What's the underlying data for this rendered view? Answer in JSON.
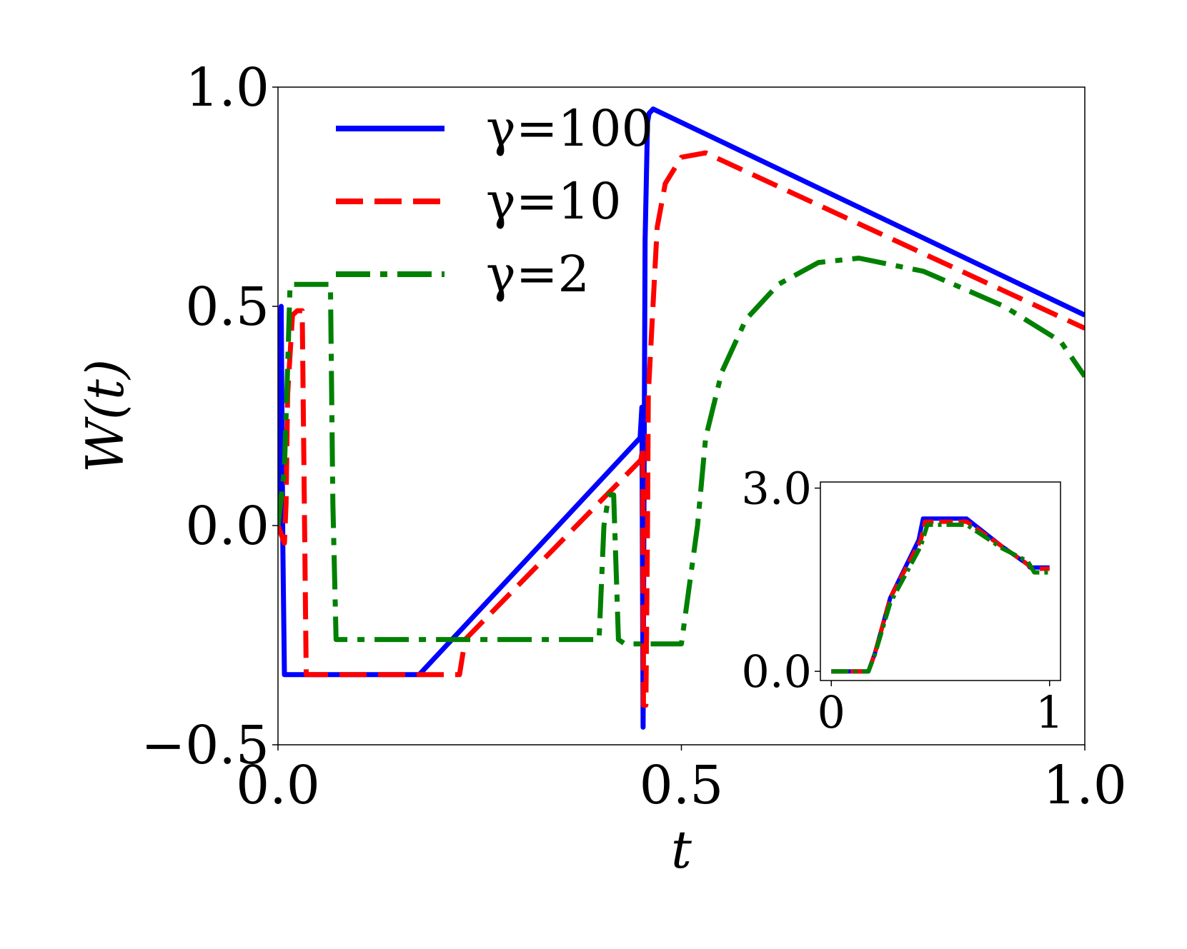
{
  "chart_data": [
    {
      "type": "line",
      "xlabel": "t",
      "ylabel": "W(t)",
      "xlim": [
        0.0,
        1.0
      ],
      "ylim": [
        -0.5,
        1.0
      ],
      "xticks": [
        "0.0",
        "0.5",
        "1.0"
      ],
      "yticks": [
        "−0.5",
        "0.0",
        "0.5",
        "1.0"
      ],
      "legend_position": "top-left",
      "grid": false,
      "series": [
        {
          "name": "γ=100",
          "color": "#0000ff",
          "style": "solid",
          "x": [
            0.0,
            0.002,
            0.004,
            0.006,
            0.008,
            0.175,
            0.4488,
            0.451,
            0.4525,
            0.4535,
            0.455,
            0.458,
            0.46,
            0.465,
            1.0
          ],
          "y": [
            0.0,
            0.45,
            0.5,
            -0.05,
            -0.34,
            -0.34,
            0.2,
            0.27,
            -0.46,
            0.0,
            0.65,
            0.92,
            0.94,
            0.95,
            0.48
          ]
        },
        {
          "name": "γ=10",
          "color": "#ff0000",
          "style": "dashed",
          "x": [
            0.0,
            0.004,
            0.008,
            0.01,
            0.012,
            0.018,
            0.024,
            0.03,
            0.035,
            0.225,
            0.232,
            0.45,
            0.452,
            0.453,
            0.456,
            0.458,
            0.459,
            0.47,
            0.48,
            0.5,
            0.53,
            1.0
          ],
          "y": [
            0.0,
            -0.02,
            -0.04,
            0.05,
            0.3,
            0.48,
            0.49,
            0.49,
            -0.34,
            -0.34,
            -0.26,
            0.15,
            0.18,
            -0.41,
            -0.41,
            0.0,
            0.3,
            0.68,
            0.78,
            0.84,
            0.85,
            0.45
          ]
        },
        {
          "name": "γ=2",
          "color": "#008000",
          "style": "dashdot",
          "x": [
            0.0,
            0.008,
            0.012,
            0.015,
            0.018,
            0.065,
            0.068,
            0.072,
            0.398,
            0.404,
            0.41,
            0.416,
            0.422,
            0.43,
            0.5,
            0.52,
            0.53,
            0.55,
            0.58,
            0.62,
            0.67,
            0.72,
            0.8,
            0.9,
            0.97,
            1.0
          ],
          "y": [
            0.0,
            0.13,
            0.36,
            0.55,
            0.55,
            0.55,
            0.05,
            -0.26,
            -0.26,
            0.0,
            0.07,
            0.07,
            -0.26,
            -0.27,
            -0.27,
            0.0,
            0.2,
            0.35,
            0.47,
            0.55,
            0.6,
            0.61,
            0.58,
            0.5,
            0.42,
            0.34
          ]
        }
      ]
    },
    {
      "type": "line",
      "inset": true,
      "xlim": [
        -0.05,
        1.05
      ],
      "ylim": [
        -0.15,
        3.1
      ],
      "xticks": [
        "0",
        "1"
      ],
      "yticks": [
        "0.0",
        "3.0"
      ],
      "series": [
        {
          "name": "γ=100",
          "color": "#0000ff",
          "style": "solid",
          "x": [
            0.0,
            0.17,
            0.2,
            0.27,
            0.4,
            0.42,
            0.62,
            0.78,
            0.9,
            0.91,
            1.0
          ],
          "y": [
            0.0,
            0.0,
            0.3,
            1.2,
            2.15,
            2.5,
            2.5,
            2.05,
            1.75,
            1.7,
            1.7
          ]
        },
        {
          "name": "γ=10",
          "color": "#ff0000",
          "style": "dashed",
          "x": [
            0.0,
            0.17,
            0.2,
            0.27,
            0.41,
            0.43,
            0.62,
            0.78,
            0.9,
            0.92,
            1.0
          ],
          "y": [
            0.0,
            0.0,
            0.3,
            1.2,
            2.15,
            2.45,
            2.45,
            2.05,
            1.75,
            1.68,
            1.68
          ]
        },
        {
          "name": "γ=2",
          "color": "#008000",
          "style": "dashdot",
          "x": [
            0.0,
            0.17,
            0.2,
            0.27,
            0.41,
            0.44,
            0.62,
            0.78,
            0.9,
            0.93,
            1.0
          ],
          "y": [
            0.0,
            0.0,
            0.28,
            1.12,
            2.05,
            2.4,
            2.4,
            2.02,
            1.8,
            1.62,
            1.62
          ]
        }
      ]
    }
  ]
}
